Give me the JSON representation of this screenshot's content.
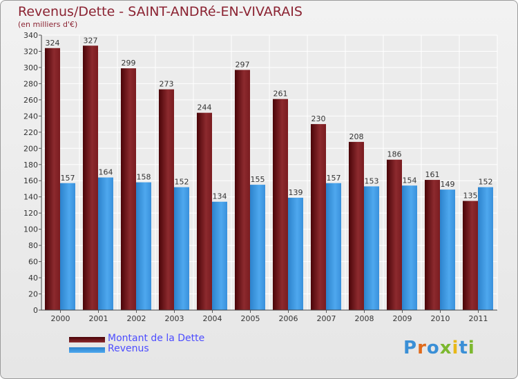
{
  "title": "Revenus/Dette - SAINT-ANDRé-EN-VIVARAIS",
  "subtitle": "(en milliers d'€)",
  "brand": "Proxiti",
  "colors": {
    "dette": "#7a1a1f",
    "revenus": "#3a95dd",
    "text": "#8b2332",
    "legend_text": "#4c4cff"
  },
  "chart_data": {
    "type": "bar",
    "title": "Revenus/Dette - SAINT-ANDRé-EN-VIVARAIS",
    "subtitle": "(en milliers d'€)",
    "categories": [
      "2000",
      "2001",
      "2002",
      "2003",
      "2004",
      "2005",
      "2006",
      "2007",
      "2008",
      "2009",
      "2010",
      "2011"
    ],
    "series": [
      {
        "name": "Montant de la Dette",
        "values": [
          324,
          327,
          299,
          273,
          244,
          297,
          261,
          230,
          208,
          186,
          161,
          135
        ]
      },
      {
        "name": "Revenus",
        "values": [
          157,
          164,
          158,
          152,
          134,
          155,
          139,
          157,
          153,
          154,
          149,
          152
        ]
      }
    ],
    "ylim": [
      0,
      340
    ],
    "yticks": [
      0,
      20,
      40,
      60,
      80,
      100,
      120,
      140,
      160,
      180,
      200,
      220,
      240,
      260,
      280,
      300,
      320,
      340
    ],
    "grid": true,
    "legend_position": "bottom-left"
  }
}
